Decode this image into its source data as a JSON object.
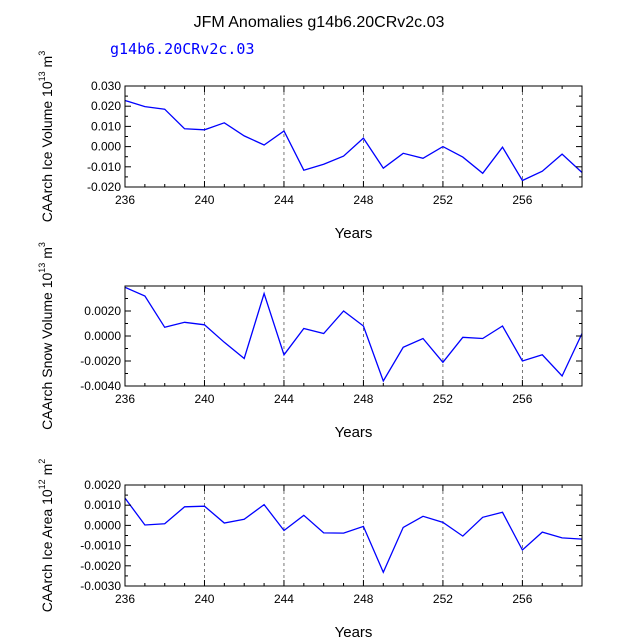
{
  "title": "JFM Anomalies g14b6.20CRv2c.03",
  "colors": {
    "series": "#0000ff",
    "axis": "#000000",
    "grid": "#555555"
  },
  "chart_data": [
    {
      "type": "line",
      "subtitle": "g14b6.20CRv2c.03",
      "xlabel": "Years",
      "ylabel": {
        "main": "CAArch Ice Volume 10",
        "exp": "13",
        "unit": " m",
        "unit_exp": "3"
      },
      "xlim": [
        236,
        259
      ],
      "ylim": [
        -0.02,
        0.03
      ],
      "xticks": [
        236,
        240,
        244,
        248,
        252,
        256
      ],
      "yticks": [
        "0.030",
        "0.020",
        "0.010",
        "0.000",
        "-0.010",
        "-0.020"
      ],
      "ytick_values": [
        0.03,
        0.02,
        0.01,
        0.0,
        -0.01,
        -0.02
      ],
      "x": [
        236,
        237,
        238,
        239,
        240,
        241,
        242,
        243,
        244,
        245,
        246,
        247,
        248,
        249,
        250,
        251,
        252,
        253,
        254,
        255,
        256,
        257,
        258,
        259
      ],
      "values": [
        0.0228,
        0.0198,
        0.0185,
        0.0088,
        0.0083,
        0.0118,
        0.0053,
        0.0008,
        0.0077,
        -0.0117,
        -0.0087,
        -0.0047,
        0.0042,
        -0.0107,
        -0.0033,
        -0.0058,
        0.0,
        -0.0052,
        -0.0132,
        -0.0003,
        -0.0168,
        -0.0122,
        -0.0037,
        -0.0128
      ]
    },
    {
      "type": "line",
      "subtitle": "",
      "xlabel": "Years",
      "ylabel": {
        "main": "CAArch Snow Volume 10",
        "exp": "13",
        "unit": " m",
        "unit_exp": "3"
      },
      "xlim": [
        236,
        259
      ],
      "ylim": [
        -0.004,
        0.004
      ],
      "xticks": [
        236,
        240,
        244,
        248,
        252,
        256
      ],
      "yticks": [
        "0.0020",
        "0.0000",
        "-0.0020",
        "-0.0040"
      ],
      "ytick_values": [
        0.002,
        0.0,
        -0.002,
        -0.004
      ],
      "x": [
        236,
        237,
        238,
        239,
        240,
        241,
        242,
        243,
        244,
        245,
        246,
        247,
        248,
        249,
        250,
        251,
        252,
        253,
        254,
        255,
        256,
        257,
        258,
        259
      ],
      "values": [
        0.0039,
        0.0032,
        0.0007,
        0.0011,
        0.0009,
        -0.0005,
        -0.0018,
        0.0034,
        -0.0015,
        0.0006,
        0.0002,
        0.002,
        0.0008,
        -0.0036,
        -0.0009,
        -0.0002,
        -0.0021,
        -0.0001,
        -0.0002,
        0.0008,
        -0.002,
        -0.0015,
        -0.0032,
        0.0002
      ]
    },
    {
      "type": "line",
      "subtitle": "",
      "xlabel": "Years",
      "ylabel": {
        "main": "CAArch Ice Area 10",
        "exp": "12",
        "unit": " m",
        "unit_exp": "2"
      },
      "xlim": [
        236,
        259
      ],
      "ylim": [
        -0.003,
        0.002
      ],
      "xticks": [
        236,
        240,
        244,
        248,
        252,
        256
      ],
      "yticks": [
        "0.0020",
        "0.0010",
        "0.0000",
        "-0.0010",
        "-0.0020",
        "-0.0030"
      ],
      "ytick_values": [
        0.002,
        0.001,
        0.0,
        -0.001,
        -0.002,
        -0.003
      ],
      "x": [
        236,
        237,
        238,
        239,
        240,
        241,
        242,
        243,
        244,
        245,
        246,
        247,
        248,
        249,
        250,
        251,
        252,
        253,
        254,
        255,
        256,
        257,
        258,
        259
      ],
      "values": [
        0.00135,
        2e-05,
        8e-05,
        0.00092,
        0.00095,
        0.00012,
        0.0003,
        0.00103,
        -0.00025,
        0.0005,
        -0.00037,
        -0.00038,
        -5e-05,
        -0.00232,
        -0.0001,
        0.00045,
        0.00015,
        -0.00053,
        0.0004,
        0.00065,
        -0.00122,
        -0.00033,
        -0.00062,
        -0.00068
      ]
    }
  ]
}
